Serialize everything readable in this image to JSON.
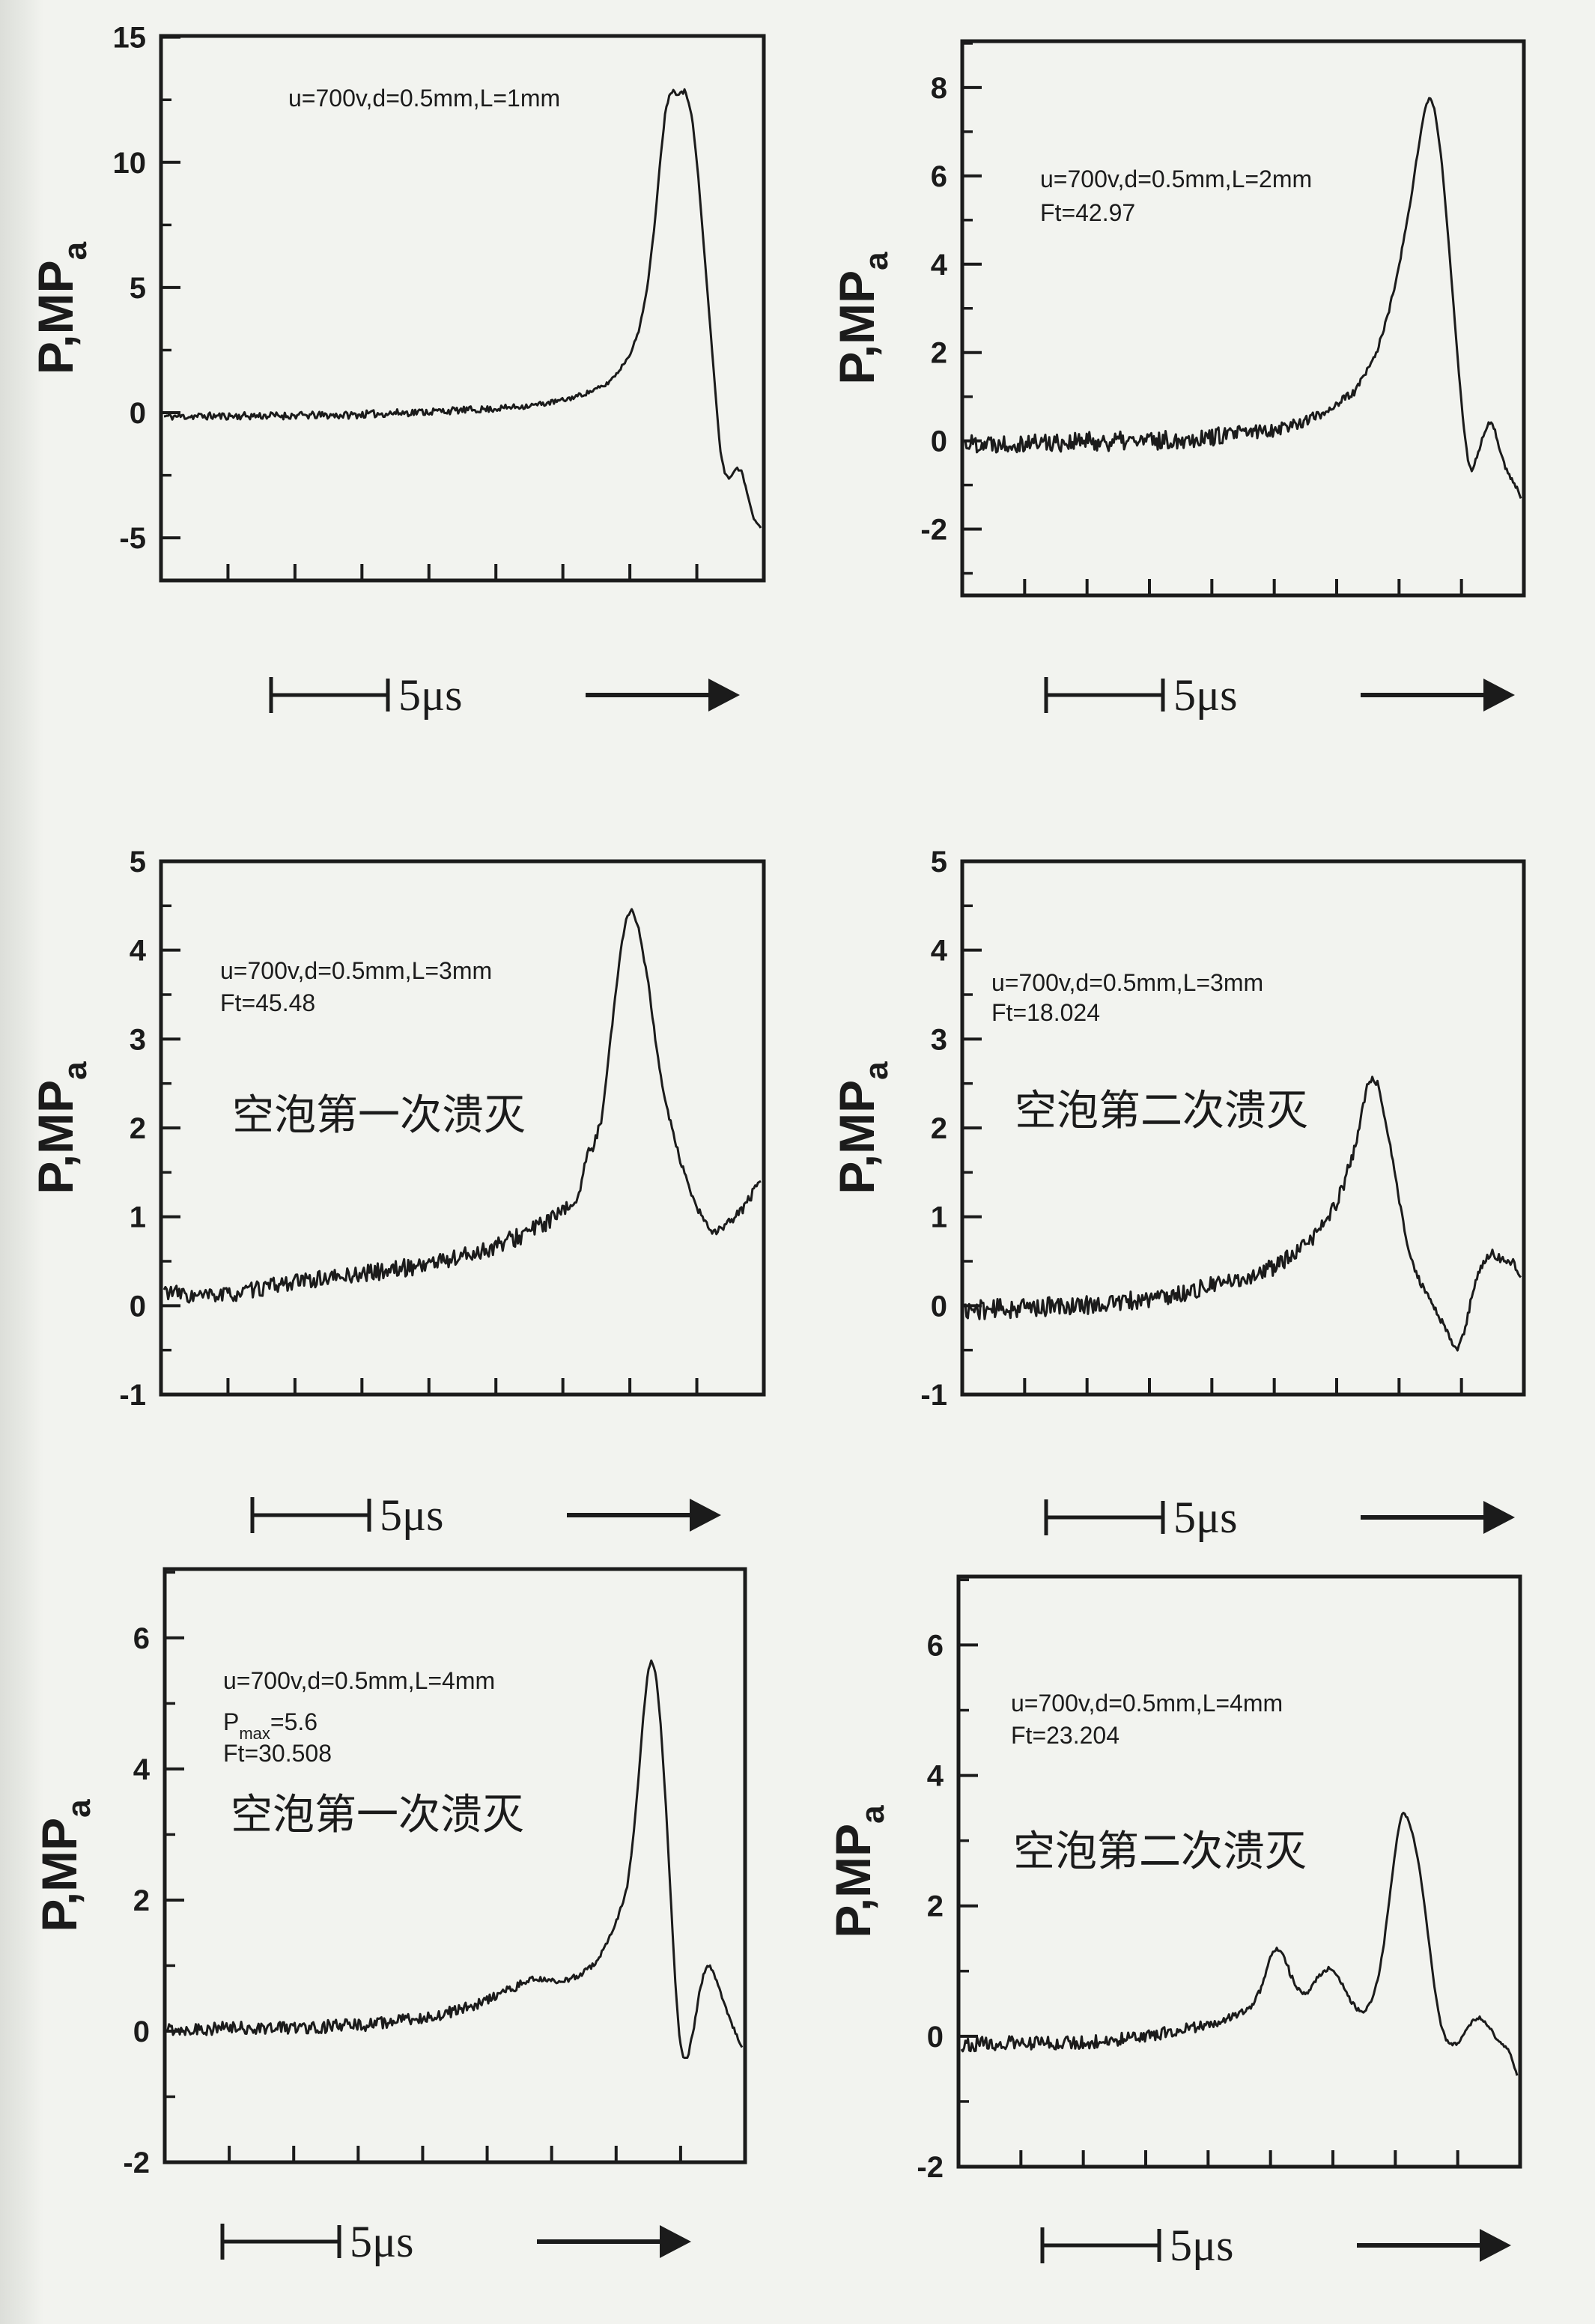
{
  "page": {
    "background": "#f2f3ef",
    "ink": "#1b1b1b"
  },
  "scale_bar": {
    "label": "5μs",
    "arrow": "right-arrow"
  },
  "chart_data": [
    {
      "type": "line",
      "params_lines": [
        {
          "text": "u=700v,d=0.5mm,L=1mm"
        }
      ],
      "cjk_label": null,
      "ylabel": {
        "main": "P,MP",
        "sub": "a"
      },
      "yticks": [
        15,
        10,
        5,
        0,
        -5
      ],
      "minor_tick_step": 2.5,
      "ylim": [
        -6.7,
        15.05
      ],
      "x_tick_count": 8,
      "x_tick_labels": null,
      "grid": false,
      "units": "MPa",
      "peak_mpa": 12.9,
      "waveform": [
        [
          0,
          -0.15,
          0.15
        ],
        [
          0.3,
          -0.1,
          0.15
        ],
        [
          0.45,
          0.05,
          0.15
        ],
        [
          0.55,
          0.15,
          0.13
        ],
        [
          0.62,
          0.3,
          0.11
        ],
        [
          0.67,
          0.5,
          0.1
        ],
        [
          0.71,
          0.8,
          0.09
        ],
        [
          0.74,
          1.1,
          0.08
        ],
        [
          0.76,
          1.6,
          0.07
        ],
        [
          0.78,
          2.3,
          0.06
        ],
        [
          0.795,
          3.2,
          0.05
        ],
        [
          0.81,
          5.0,
          0.04
        ],
        [
          0.822,
          7.5,
          0.03
        ],
        [
          0.832,
          10.2,
          0.03
        ],
        [
          0.84,
          12.0,
          0.05
        ],
        [
          0.848,
          12.85,
          0.1
        ],
        [
          0.86,
          12.8,
          0.12
        ],
        [
          0.872,
          12.85,
          0.1
        ],
        [
          0.878,
          12.5,
          0.04
        ],
        [
          0.885,
          11.8,
          0.02
        ],
        [
          0.895,
          9.5,
          0.01
        ],
        [
          0.905,
          6.5,
          0.01
        ],
        [
          0.915,
          3.5,
          0.01
        ],
        [
          0.925,
          0.5,
          0.02
        ],
        [
          0.932,
          -1.5,
          0.03
        ],
        [
          0.94,
          -2.45,
          0.04
        ],
        [
          0.948,
          -2.65,
          0.04
        ],
        [
          0.958,
          -2.2,
          0.05
        ],
        [
          0.968,
          -2.35,
          0.05
        ],
        [
          0.978,
          -3.3,
          0.04
        ],
        [
          0.988,
          -4.2,
          0.04
        ],
        [
          1,
          -4.6,
          0.02
        ]
      ]
    },
    {
      "type": "line",
      "params_lines": [
        {
          "text": "u=700v,d=0.5mm,L=2mm"
        },
        {
          "text": "Ft=42.97"
        }
      ],
      "cjk_label": null,
      "ylabel": {
        "main": "P,MP",
        "sub": "a"
      },
      "yticks": [
        8,
        6,
        4,
        2,
        0,
        -2
      ],
      "minor_tick_step": 1,
      "ylim": [
        -3.5,
        9.05
      ],
      "x_tick_count": 8,
      "x_tick_labels": null,
      "grid": false,
      "units": "MPa",
      "peak_mpa": 7.8,
      "waveform": [
        [
          0,
          -0.05,
          0.22
        ],
        [
          0.35,
          0.0,
          0.22
        ],
        [
          0.45,
          0.1,
          0.2
        ],
        [
          0.55,
          0.25,
          0.17
        ],
        [
          0.6,
          0.4,
          0.14
        ],
        [
          0.64,
          0.6,
          0.12
        ],
        [
          0.67,
          0.85,
          0.1
        ],
        [
          0.7,
          1.1,
          0.09
        ],
        [
          0.72,
          1.5,
          0.08
        ],
        [
          0.74,
          2.0,
          0.07
        ],
        [
          0.76,
          2.8,
          0.06
        ],
        [
          0.78,
          3.9,
          0.05
        ],
        [
          0.8,
          5.3,
          0.04
        ],
        [
          0.815,
          6.6,
          0.03
        ],
        [
          0.827,
          7.5,
          0.02
        ],
        [
          0.836,
          7.8,
          0.02
        ],
        [
          0.845,
          7.5,
          0.01
        ],
        [
          0.857,
          6.4,
          0.01
        ],
        [
          0.868,
          4.8,
          0.01
        ],
        [
          0.878,
          3.2,
          0.01
        ],
        [
          0.888,
          1.6,
          0.02
        ],
        [
          0.897,
          0.3,
          0.03
        ],
        [
          0.905,
          -0.45,
          0.03
        ],
        [
          0.912,
          -0.7,
          0.03
        ],
        [
          0.922,
          -0.3,
          0.05
        ],
        [
          0.932,
          0.1,
          0.05
        ],
        [
          0.942,
          0.45,
          0.05
        ],
        [
          0.952,
          0.3,
          0.04
        ],
        [
          0.962,
          -0.2,
          0.04
        ],
        [
          0.972,
          -0.6,
          0.04
        ],
        [
          0.982,
          -0.85,
          0.05
        ],
        [
          0.992,
          -1.05,
          0.05
        ],
        [
          1,
          -1.3,
          0.02
        ]
      ]
    },
    {
      "type": "line",
      "params_lines": [
        {
          "text": "u=700v,d=0.5mm,L=3mm"
        },
        {
          "text": "Ft=45.48"
        }
      ],
      "cjk_label": "空泡第一次溃灭",
      "ylabel": {
        "main": "P,MP",
        "sub": "a"
      },
      "yticks": [
        5,
        4,
        3,
        2,
        1,
        0,
        -1
      ],
      "minor_tick_step": 0.5,
      "ylim": [
        -1,
        5
      ],
      "x_tick_count": 8,
      "x_tick_labels": null,
      "grid": false,
      "units": "MPa",
      "peak_mpa": 4.45,
      "waveform": [
        [
          0,
          0.17,
          0.09
        ],
        [
          0.05,
          0.1,
          0.09
        ],
        [
          0.12,
          0.13,
          0.09
        ],
        [
          0.2,
          0.25,
          0.09
        ],
        [
          0.3,
          0.33,
          0.09
        ],
        [
          0.4,
          0.42,
          0.1
        ],
        [
          0.5,
          0.55,
          0.11
        ],
        [
          0.57,
          0.7,
          0.11
        ],
        [
          0.63,
          0.9,
          0.1
        ],
        [
          0.67,
          1.05,
          0.09
        ],
        [
          0.695,
          1.25,
          0.08
        ],
        [
          0.71,
          1.7,
          0.06
        ],
        [
          0.72,
          1.8,
          0.05
        ],
        [
          0.733,
          2.1,
          0.04
        ],
        [
          0.75,
          3.1,
          0.03
        ],
        [
          0.765,
          4.0,
          0.02
        ],
        [
          0.776,
          4.4,
          0.02
        ],
        [
          0.785,
          4.45,
          0.02
        ],
        [
          0.795,
          4.25,
          0.03
        ],
        [
          0.81,
          3.7,
          0.03
        ],
        [
          0.825,
          2.9,
          0.03
        ],
        [
          0.84,
          2.3,
          0.03
        ],
        [
          0.86,
          1.75,
          0.04
        ],
        [
          0.88,
          1.3,
          0.04
        ],
        [
          0.9,
          1.0,
          0.05
        ],
        [
          0.92,
          0.82,
          0.05
        ],
        [
          0.94,
          0.88,
          0.06
        ],
        [
          0.965,
          1.05,
          0.06
        ],
        [
          0.985,
          1.25,
          0.06
        ],
        [
          1,
          1.4,
          0.03
        ]
      ]
    },
    {
      "type": "line",
      "params_lines": [
        {
          "text": "u=700v,d=0.5mm,L=3mm"
        },
        {
          "text": "Ft=18.024"
        }
      ],
      "cjk_label": "空泡第二次溃灭",
      "ylabel": {
        "main": "P,MP",
        "sub": "a"
      },
      "yticks": [
        5,
        4,
        3,
        2,
        1,
        0,
        -1
      ],
      "minor_tick_step": 0.5,
      "ylim": [
        -1,
        5
      ],
      "x_tick_count": 8,
      "x_tick_labels": null,
      "grid": false,
      "units": "MPa",
      "peak_mpa": 2.6,
      "waveform": [
        [
          0,
          -0.05,
          0.11
        ],
        [
          0.2,
          0.0,
          0.11
        ],
        [
          0.3,
          0.05,
          0.11
        ],
        [
          0.38,
          0.12,
          0.1
        ],
        [
          0.44,
          0.22,
          0.1
        ],
        [
          0.5,
          0.3,
          0.09
        ],
        [
          0.55,
          0.42,
          0.1
        ],
        [
          0.6,
          0.6,
          0.09
        ],
        [
          0.63,
          0.8,
          0.09
        ],
        [
          0.66,
          1.05,
          0.09
        ],
        [
          0.68,
          1.35,
          0.08
        ],
        [
          0.7,
          1.75,
          0.06
        ],
        [
          0.712,
          2.1,
          0.05
        ],
        [
          0.722,
          2.45,
          0.04
        ],
        [
          0.732,
          2.55,
          0.03
        ],
        [
          0.742,
          2.5,
          0.03
        ],
        [
          0.752,
          2.2,
          0.02
        ],
        [
          0.765,
          1.8,
          0.02
        ],
        [
          0.778,
          1.3,
          0.03
        ],
        [
          0.792,
          0.8,
          0.03
        ],
        [
          0.806,
          0.45,
          0.03
        ],
        [
          0.82,
          0.25,
          0.04
        ],
        [
          0.838,
          0.05,
          0.04
        ],
        [
          0.855,
          -0.15,
          0.04
        ],
        [
          0.868,
          -0.3,
          0.03
        ],
        [
          0.878,
          -0.45,
          0.03
        ],
        [
          0.886,
          -0.5,
          0.02
        ],
        [
          0.9,
          -0.25,
          0.04
        ],
        [
          0.915,
          0.2,
          0.04
        ],
        [
          0.93,
          0.45,
          0.05
        ],
        [
          0.945,
          0.6,
          0.05
        ],
        [
          0.958,
          0.55,
          0.04
        ],
        [
          0.972,
          0.5,
          0.05
        ],
        [
          0.985,
          0.5,
          0.04
        ],
        [
          1,
          0.3,
          0.02
        ]
      ]
    },
    {
      "type": "line",
      "params_lines": [
        {
          "text": "u=700v,d=0.5mm,L=4mm"
        },
        {
          "base": "P",
          "sub": "max",
          "rest": "=5.6"
        },
        {
          "text": "Ft=30.508"
        }
      ],
      "cjk_label": "空泡第一次溃灭",
      "ylabel": {
        "main": "P,MP",
        "sub": "a"
      },
      "yticks": [
        6,
        4,
        2,
        0,
        -2
      ],
      "minor_tick_step": 1,
      "ylim": [
        -2,
        7.05
      ],
      "x_tick_count": 8,
      "x_tick_labels": null,
      "grid": false,
      "units": "MPa",
      "peak_mpa": 5.65,
      "waveform": [
        [
          0,
          0.03,
          0.1
        ],
        [
          0.25,
          0.06,
          0.1
        ],
        [
          0.35,
          0.1,
          0.1
        ],
        [
          0.44,
          0.2,
          0.09
        ],
        [
          0.5,
          0.3,
          0.09
        ],
        [
          0.55,
          0.45,
          0.08
        ],
        [
          0.6,
          0.65,
          0.07
        ],
        [
          0.63,
          0.78,
          0.05
        ],
        [
          0.655,
          0.8,
          0.04
        ],
        [
          0.675,
          0.75,
          0.04
        ],
        [
          0.695,
          0.78,
          0.04
        ],
        [
          0.715,
          0.85,
          0.04
        ],
        [
          0.733,
          0.95,
          0.04
        ],
        [
          0.75,
          1.1,
          0.04
        ],
        [
          0.765,
          1.35,
          0.04
        ],
        [
          0.778,
          1.6,
          0.03
        ],
        [
          0.79,
          1.9,
          0.03
        ],
        [
          0.8,
          2.2,
          0.02
        ],
        [
          0.81,
          2.9,
          0.02
        ],
        [
          0.82,
          3.9,
          0.01
        ],
        [
          0.828,
          4.8,
          0.01
        ],
        [
          0.836,
          5.5,
          0.01
        ],
        [
          0.842,
          5.65,
          0.01
        ],
        [
          0.85,
          5.45,
          0.01
        ],
        [
          0.858,
          4.7,
          0.01
        ],
        [
          0.867,
          3.5,
          0.01
        ],
        [
          0.876,
          2.0,
          0.01
        ],
        [
          0.884,
          0.7,
          0.01
        ],
        [
          0.891,
          -0.1,
          0.01
        ],
        [
          0.897,
          -0.38,
          0.02
        ],
        [
          0.905,
          -0.42,
          0.02
        ],
        [
          0.915,
          0.0,
          0.03
        ],
        [
          0.925,
          0.55,
          0.03
        ],
        [
          0.934,
          0.9,
          0.03
        ],
        [
          0.942,
          1.0,
          0.03
        ],
        [
          0.95,
          0.9,
          0.03
        ],
        [
          0.96,
          0.65,
          0.03
        ],
        [
          0.972,
          0.35,
          0.03
        ],
        [
          0.985,
          0.05,
          0.03
        ],
        [
          1,
          -0.25,
          0.02
        ]
      ]
    },
    {
      "type": "line",
      "params_lines": [
        {
          "text": "u=700v,d=0.5mm,L=4mm"
        },
        {
          "text": "Ft=23.204"
        }
      ],
      "cjk_label": "空泡第二次溃灭",
      "ylabel": {
        "main": "P,MP",
        "sub": "a"
      },
      "yticks": [
        6,
        4,
        2,
        0,
        -2
      ],
      "minor_tick_step": 1,
      "ylim": [
        -2,
        7.05
      ],
      "x_tick_count": 8,
      "x_tick_labels": null,
      "grid": false,
      "units": "MPa",
      "peak_mpa": 3.45,
      "waveform": [
        [
          0,
          -0.12,
          0.11
        ],
        [
          0.15,
          -0.1,
          0.11
        ],
        [
          0.25,
          -0.08,
          0.1
        ],
        [
          0.33,
          0.0,
          0.09
        ],
        [
          0.4,
          0.1,
          0.09
        ],
        [
          0.46,
          0.22,
          0.07
        ],
        [
          0.5,
          0.35,
          0.06
        ],
        [
          0.52,
          0.45,
          0.05
        ],
        [
          0.538,
          0.7,
          0.04
        ],
        [
          0.55,
          1.05,
          0.03
        ],
        [
          0.56,
          1.3,
          0.03
        ],
        [
          0.568,
          1.35,
          0.03
        ],
        [
          0.578,
          1.25,
          0.04
        ],
        [
          0.59,
          1.0,
          0.05
        ],
        [
          0.602,
          0.75,
          0.04
        ],
        [
          0.612,
          0.65,
          0.04
        ],
        [
          0.625,
          0.7,
          0.04
        ],
        [
          0.64,
          0.9,
          0.03
        ],
        [
          0.652,
          1.0,
          0.03
        ],
        [
          0.663,
          1.05,
          0.03
        ],
        [
          0.675,
          0.95,
          0.03
        ],
        [
          0.688,
          0.75,
          0.03
        ],
        [
          0.7,
          0.55,
          0.03
        ],
        [
          0.712,
          0.42,
          0.03
        ],
        [
          0.722,
          0.35,
          0.03
        ],
        [
          0.732,
          0.45,
          0.03
        ],
        [
          0.74,
          0.6,
          0.02
        ],
        [
          0.75,
          0.9,
          0.02
        ],
        [
          0.76,
          1.4,
          0.02
        ],
        [
          0.77,
          2.1,
          0.02
        ],
        [
          0.78,
          2.8,
          0.01
        ],
        [
          0.788,
          3.25,
          0.02
        ],
        [
          0.795,
          3.45,
          0.03
        ],
        [
          0.803,
          3.35,
          0.02
        ],
        [
          0.812,
          3.1,
          0.01
        ],
        [
          0.822,
          2.7,
          0.01
        ],
        [
          0.832,
          2.1,
          0.01
        ],
        [
          0.842,
          1.4,
          0.01
        ],
        [
          0.852,
          0.7,
          0.01
        ],
        [
          0.862,
          0.2,
          0.02
        ],
        [
          0.872,
          -0.05,
          0.02
        ],
        [
          0.882,
          -0.12,
          0.02
        ],
        [
          0.895,
          -0.1,
          0.03
        ],
        [
          0.908,
          0.08,
          0.03
        ],
        [
          0.92,
          0.25,
          0.03
        ],
        [
          0.932,
          0.3,
          0.03
        ],
        [
          0.944,
          0.22,
          0.03
        ],
        [
          0.956,
          0.05,
          0.03
        ],
        [
          0.97,
          -0.1,
          0.02
        ],
        [
          0.985,
          -0.2,
          0.02
        ],
        [
          1,
          -0.6,
          0.01
        ]
      ]
    }
  ]
}
